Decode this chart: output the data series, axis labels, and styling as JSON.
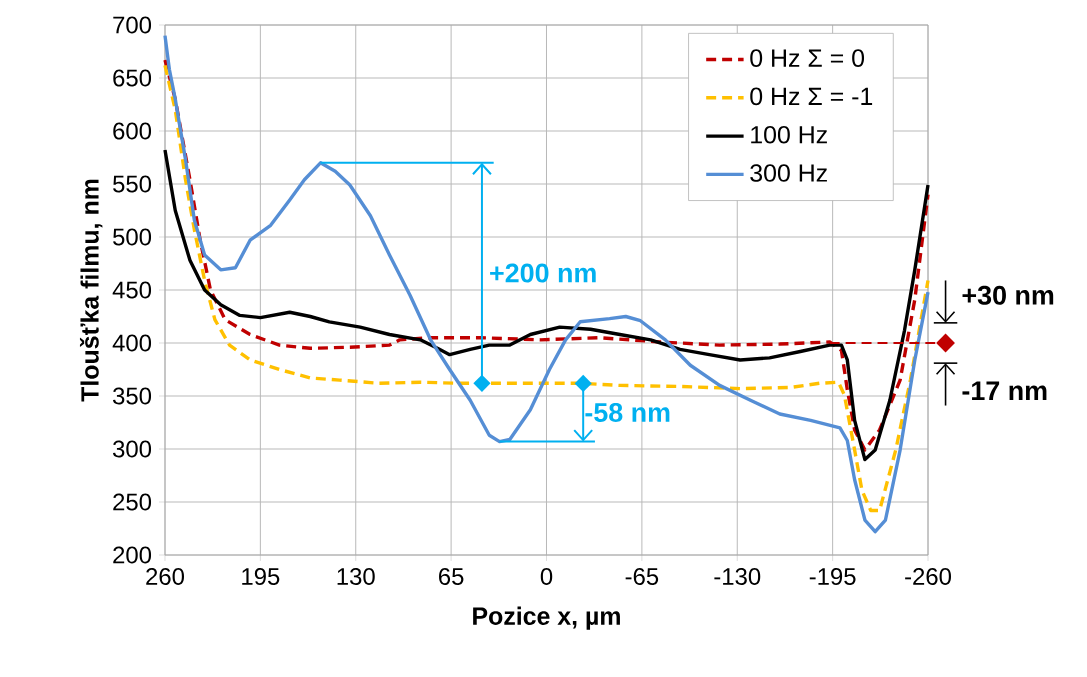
{
  "chart_data": {
    "type": "line",
    "xlabel": "Pozice x, µm",
    "ylabel": "Tloušťka filmu, nm",
    "xlim": [
      260,
      -260
    ],
    "xticks": [
      260,
      195,
      130,
      65,
      0,
      -65,
      -130,
      -195,
      -260
    ],
    "ylim": [
      200,
      700
    ],
    "yticks": [
      200,
      250,
      300,
      350,
      400,
      450,
      500,
      550,
      600,
      650,
      700
    ],
    "grid": true,
    "legend": "top right",
    "marker": "none",
    "ref_lines": [
      {
        "axis": "y",
        "value": 400,
        "color": "#c00000",
        "line_style": "dashed"
      }
    ],
    "annotations": [
      "+200 nm",
      {
        "text": "-58 nm",
        "x": 32,
        "y": 307
      },
      "+30 nm",
      "-17 nm"
    ],
    "series": [
      {
        "name": "0 Hz Σ = 0",
        "color": "#c00000",
        "line_style": "dashed",
        "x": [
          260,
          253,
          243,
          236,
          229,
          219,
          202,
          182,
          161,
          134,
          107,
          100,
          79,
          45,
          4,
          -36,
          -77,
          -118,
          -159,
          -193,
          -201,
          -205,
          -210,
          -217,
          -227,
          -241,
          -251,
          -260
        ],
        "values": [
          667,
          630,
          554,
          497,
          450,
          422,
          408,
          398,
          395,
          396,
          398,
          403,
          405,
          405,
          403,
          405,
          401,
          398,
          399,
          401,
          393,
          356,
          318,
          299,
          318,
          365,
          441,
          540
        ]
      },
      {
        "name": "0 Hz Σ = -1",
        "color": "#ffc000",
        "line_style": "dashed",
        "x": [
          260,
          253,
          246,
          240,
          233,
          226,
          216,
          202,
          182,
          161,
          141,
          114,
          86,
          59,
          32,
          4,
          -23,
          -50,
          -91,
          -132,
          -166,
          -186,
          -199,
          -203,
          -210,
          -215,
          -221,
          -227,
          -238,
          -248,
          -260
        ],
        "values": [
          662,
          620,
          554,
          507,
          459,
          422,
          398,
          384,
          375,
          367,
          365,
          362,
          363,
          362,
          362,
          362,
          362,
          360,
          359,
          357,
          358,
          362,
          363,
          351,
          299,
          261,
          242,
          242,
          299,
          365,
          459
        ]
      },
      {
        "name": "100 Hz",
        "color": "#000000",
        "line_style": "solid",
        "x": [
          260,
          253,
          243,
          233,
          222,
          209,
          195,
          175,
          161,
          148,
          127,
          107,
          86,
          73,
          66,
          52,
          39,
          25,
          11,
          -9,
          -30,
          -50,
          -71,
          -91,
          -111,
          -132,
          -152,
          -173,
          -193,
          -201,
          -205,
          -210,
          -217,
          -224,
          -234,
          -244,
          -251,
          -260
        ],
        "values": [
          582,
          525,
          478,
          450,
          436,
          426,
          424,
          429,
          425,
          420,
          415,
          408,
          403,
          394,
          389,
          394,
          398,
          398,
          408,
          415,
          413,
          408,
          403,
          394,
          389,
          384,
          386,
          392,
          398,
          398,
          384,
          327,
          290,
          299,
          346,
          412,
          469,
          549
        ]
      },
      {
        "name": "300 Hz",
        "color": "#558ed5",
        "line_style": "solid",
        "x": [
          260,
          257,
          253,
          246,
          240,
          233,
          222,
          212,
          202,
          188,
          175,
          165,
          154,
          144,
          134,
          120,
          107,
          93,
          79,
          66,
          52,
          39,
          32,
          25,
          11,
          -2,
          -13,
          -23,
          -43,
          -54,
          -64,
          -81,
          -98,
          -118,
          -139,
          -159,
          -180,
          -200,
          -205,
          -210,
          -217,
          -224,
          -231,
          -241,
          -251,
          -260
        ],
        "values": [
          690,
          658,
          630,
          573,
          516,
          483,
          469,
          471,
          497,
          511,
          535,
          554,
          570,
          562,
          549,
          520,
          483,
          445,
          403,
          375,
          346,
          313,
          307,
          309,
          337,
          375,
          403,
          420,
          423,
          425,
          421,
          403,
          379,
          360,
          346,
          333,
          327,
          320,
          308,
          271,
          233,
          222,
          233,
          299,
          384,
          448
        ]
      }
    ]
  }
}
